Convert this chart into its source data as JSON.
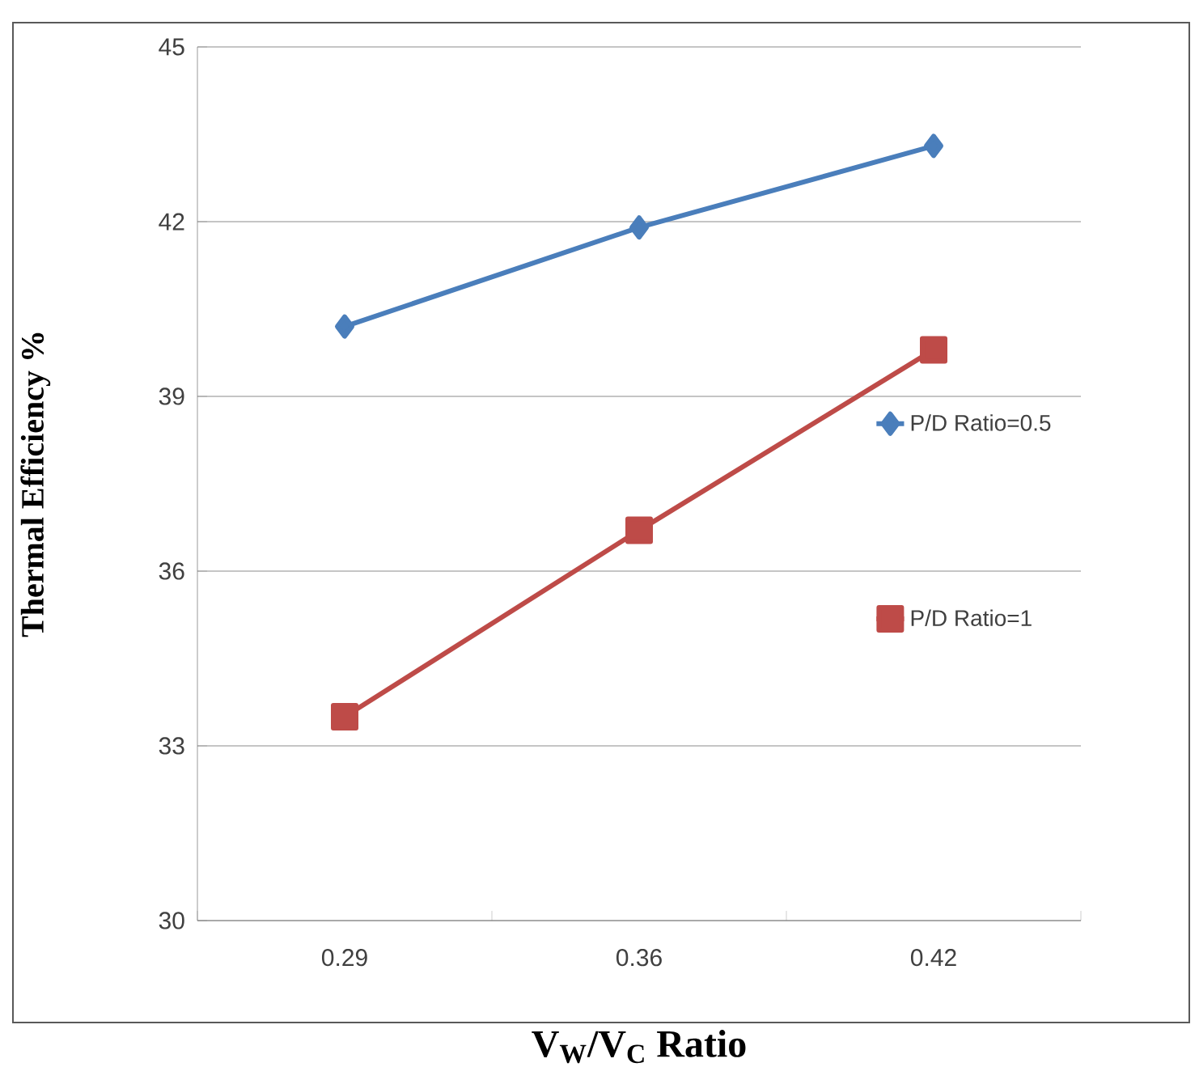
{
  "chart_data": {
    "type": "line",
    "xlabel": "**V$_{W}$/V$_{C}$ Ratio**",
    "ylabel": "Thermal Efficiency  %",
    "categories": [
      "0.29",
      "0.36",
      "0.42"
    ],
    "ylim": [
      30,
      45
    ],
    "yticks": [
      30,
      33,
      36,
      39,
      42,
      45
    ],
    "grid": "y",
    "legend": "right",
    "series": [
      {
        "name": "P/D Ratio=0.5",
        "color": "#4a7ebb",
        "marker": "diamond",
        "values": [
          40.2,
          41.9,
          43.3
        ]
      },
      {
        "name": "P/D Ratio=1",
        "color": "#be4b48",
        "marker": "square",
        "values": [
          33.5,
          36.7,
          39.8
        ]
      }
    ]
  }
}
